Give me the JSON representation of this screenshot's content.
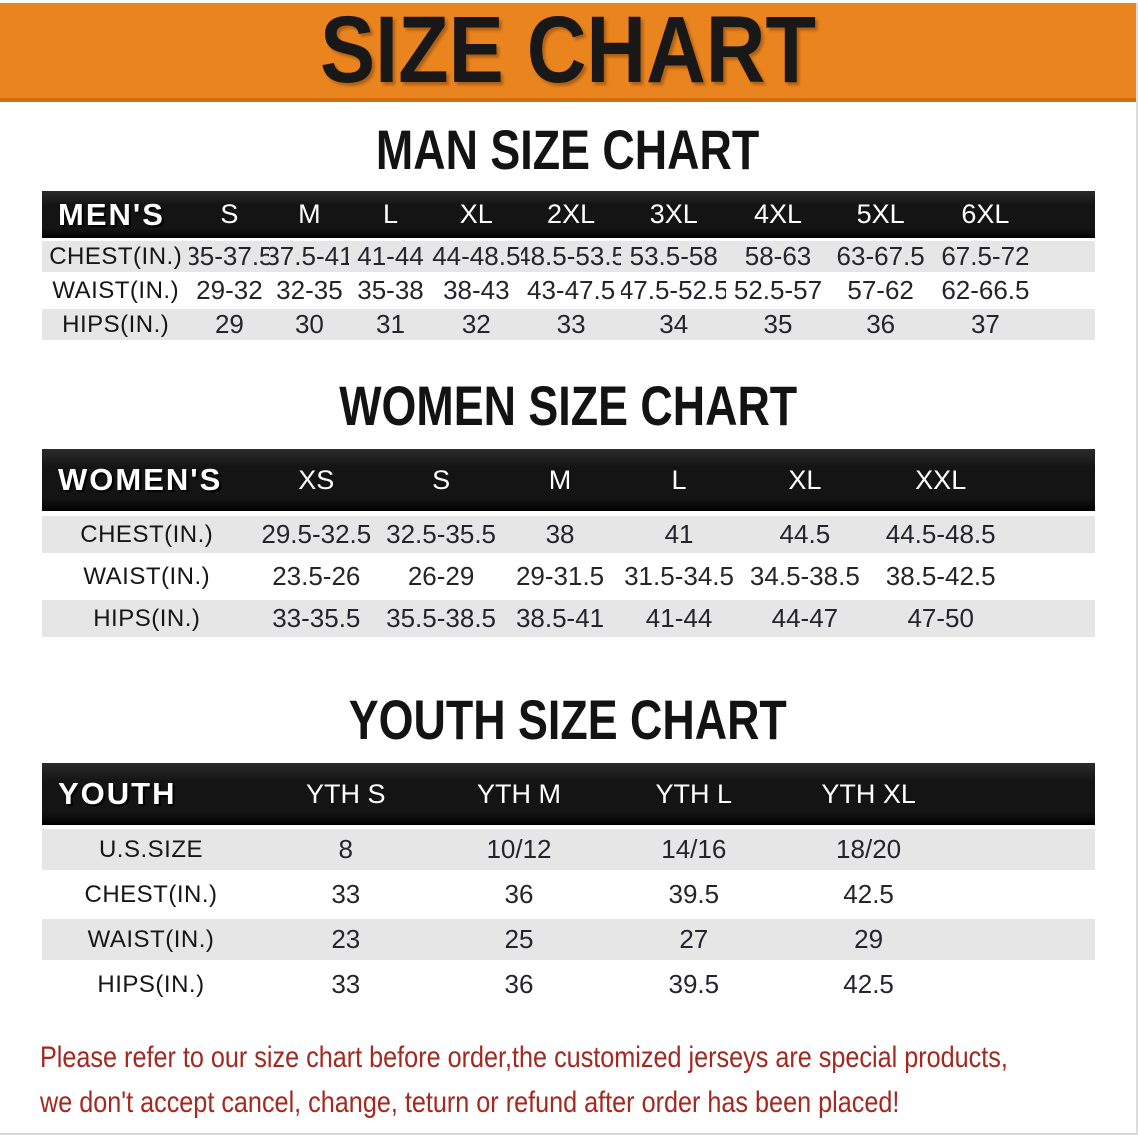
{
  "banner": {
    "title": "SIZE CHART",
    "bg_color": "#E9841F"
  },
  "chart_data": [
    {
      "type": "table",
      "id": "men",
      "title": "MAN SIZE CHART",
      "header": [
        "MEN'S",
        "S",
        "M",
        "L",
        "XL",
        "2XL",
        "3XL",
        "4XL",
        "5XL",
        "6XL"
      ],
      "rows": [
        [
          "CHEST(IN.)",
          "35-37.5",
          "37.5-41",
          "41-44",
          "44-48.5",
          "48.5-53.5",
          "53.5-58",
          "58-63",
          "63-67.5",
          "67.5-72"
        ],
        [
          "WAIST(IN.)",
          "29-32",
          "32-35",
          "35-38",
          "38-43",
          "43-47.5",
          "47.5-52.5",
          "52.5-57",
          "57-62",
          "62-66.5"
        ],
        [
          "HIPS(IN.)",
          "29",
          "30",
          "31",
          "32",
          "33",
          "34",
          "35",
          "36",
          "37"
        ]
      ]
    },
    {
      "type": "table",
      "id": "women",
      "title": "WOMEN SIZE CHART",
      "header": [
        "WOMEN'S",
        "XS",
        "S",
        "M",
        "L",
        "XL",
        "XXL"
      ],
      "rows": [
        [
          "CHEST(IN.)",
          "29.5-32.5",
          "32.5-35.5",
          "38",
          "41",
          "44.5",
          "44.5-48.5"
        ],
        [
          "WAIST(IN.)",
          "23.5-26",
          "26-29",
          "29-31.5",
          "31.5-34.5",
          "34.5-38.5",
          "38.5-42.5"
        ],
        [
          "HIPS(IN.)",
          "33-35.5",
          "35.5-38.5",
          "38.5-41",
          "41-44",
          "44-47",
          "47-50"
        ]
      ]
    },
    {
      "type": "table",
      "id": "youth",
      "title": "YOUTH SIZE CHART",
      "header": [
        "YOUTH",
        "YTH S",
        "YTH M",
        "YTH L",
        "YTH XL"
      ],
      "rows": [
        [
          "U.S.SIZE",
          "8",
          "10/12",
          "14/16",
          "18/20"
        ],
        [
          "CHEST(IN.)",
          "33",
          "36",
          "39.5",
          "42.5"
        ],
        [
          "WAIST(IN.)",
          "23",
          "25",
          "27",
          "29"
        ],
        [
          "HIPS(IN.)",
          "33",
          "36",
          "39.5",
          "42.5"
        ]
      ]
    }
  ],
  "disclaimer": {
    "color": "#A3281F",
    "lines": [
      "Please refer to our size chart before order,the customized jerseys are special products,",
      "we don't accept cancel, change, teturn or refund after order has been placed!"
    ]
  }
}
